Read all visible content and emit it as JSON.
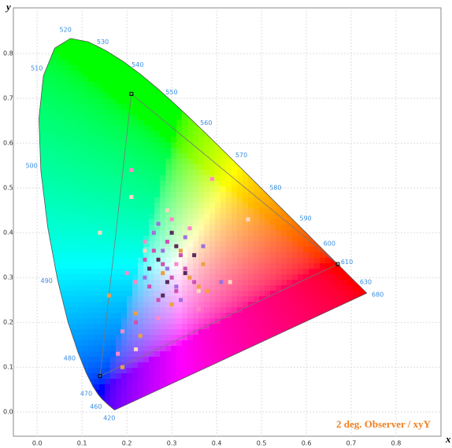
{
  "chart_data": {
    "type": "scatter",
    "x_label": "x",
    "y_label": "y",
    "annotation": "2 deg. Observer / xyY",
    "xlim": [
      -0.053,
      0.9
    ],
    "ylim": [
      -0.054,
      0.902
    ],
    "xticks": [
      {
        "value": 0,
        "label": "0.0"
      },
      0.1,
      0.2,
      0.3,
      0.4,
      0.5,
      0.6,
      0.7,
      0.8
    ],
    "yticks": [
      {
        "value": 0,
        "label": "0.0"
      },
      0.1,
      0.2,
      0.3,
      0.4,
      0.5,
      0.6,
      0.7,
      0.8
    ],
    "grid": true,
    "locus": {
      "x": [
        0.1741,
        0.1714,
        0.1644,
        0.1566,
        0.144,
        0.1355,
        0.1241,
        0.1096,
        0.0913,
        0.0687,
        0.0454,
        0.0235,
        0.0082,
        0.0039,
        0.0139,
        0.0389,
        0.0743,
        0.1142,
        0.1547,
        0.1929,
        0.2296,
        0.2658,
        0.3016,
        0.3373,
        0.3731,
        0.4087,
        0.4441,
        0.4788,
        0.5125,
        0.5448,
        0.5752,
        0.6029,
        0.627,
        0.6482,
        0.6658,
        0.6915,
        0.7079,
        0.726,
        0.7347
      ],
      "y": [
        0.005,
        0.0051,
        0.0109,
        0.0177,
        0.0297,
        0.0399,
        0.0578,
        0.0868,
        0.1327,
        0.2007,
        0.295,
        0.4127,
        0.5384,
        0.6548,
        0.7502,
        0.812,
        0.8338,
        0.8262,
        0.8059,
        0.7816,
        0.7543,
        0.7243,
        0.6923,
        0.6589,
        0.6245,
        0.5896,
        0.5547,
        0.5202,
        0.4866,
        0.4544,
        0.4242,
        0.3965,
        0.3725,
        0.3514,
        0.334,
        0.3083,
        0.292,
        0.274,
        0.2653
      ]
    },
    "wavelength_labels": [
      {
        "label": "420",
        "x": 0.1714,
        "y": 0.0051
      },
      {
        "label": "460",
        "x": 0.144,
        "y": 0.0297
      },
      {
        "label": "470",
        "x": 0.1241,
        "y": 0.0578
      },
      {
        "label": "480",
        "x": 0.0913,
        "y": 0.1327
      },
      {
        "label": "490",
        "x": 0.0454,
        "y": 0.295
      },
      {
        "label": "500",
        "x": 0.0082,
        "y": 0.5384
      },
      {
        "label": "510",
        "x": 0.0139,
        "y": 0.7502
      },
      {
        "label": "520",
        "x": 0.0743,
        "y": 0.8338
      },
      {
        "label": "530",
        "x": 0.1547,
        "y": 0.8059
      },
      {
        "label": "540",
        "x": 0.2296,
        "y": 0.7543
      },
      {
        "label": "550",
        "x": 0.3016,
        "y": 0.6923
      },
      {
        "label": "560",
        "x": 0.3731,
        "y": 0.6245
      },
      {
        "label": "570",
        "x": 0.4441,
        "y": 0.5547
      },
      {
        "label": "580",
        "x": 0.5125,
        "y": 0.4866
      },
      {
        "label": "590",
        "x": 0.5752,
        "y": 0.4242
      },
      {
        "label": "600",
        "x": 0.627,
        "y": 0.3725
      },
      {
        "label": "610",
        "x": 0.6658,
        "y": 0.334
      },
      {
        "label": "630",
        "x": 0.7079,
        "y": 0.292
      },
      {
        "label": "680",
        "x": 0.7347,
        "y": 0.2653
      }
    ],
    "gamut": {
      "x": [
        0.21,
        0.67,
        0.14
      ],
      "y": [
        0.71,
        0.33,
        0.08
      ]
    },
    "series": [
      {
        "color": "#d050b0",
        "x": [
          0.26,
          0.28,
          0.3,
          0.32,
          0.25,
          0.29,
          0.33,
          0.27,
          0.31,
          0.24,
          0.35,
          0.22
        ],
        "y": [
          0.36,
          0.33,
          0.3,
          0.35,
          0.28,
          0.38,
          0.32,
          0.25,
          0.27,
          0.34,
          0.29,
          0.2
        ]
      },
      {
        "color": "#f0a040",
        "x": [
          0.34,
          0.36,
          0.3,
          0.22,
          0.19,
          0.28,
          0.37,
          0.23,
          0.32,
          0.16,
          0.26,
          0.38
        ],
        "y": [
          0.3,
          0.28,
          0.24,
          0.22,
          0.1,
          0.31,
          0.33,
          0.17,
          0.36,
          0.26,
          0.4,
          0.27
        ]
      },
      {
        "color": "#5a2a5a",
        "x": [
          0.27,
          0.31,
          0.29,
          0.33,
          0.25,
          0.3,
          0.28,
          0.35
        ],
        "y": [
          0.34,
          0.37,
          0.29,
          0.31,
          0.32,
          0.4,
          0.26,
          0.35
        ]
      },
      {
        "color": "#ff88c8",
        "x": [
          0.21,
          0.2,
          0.24,
          0.3,
          0.34,
          0.18,
          0.27,
          0.36,
          0.19,
          0.39,
          0.22,
          0.31
        ],
        "y": [
          0.54,
          0.31,
          0.38,
          0.43,
          0.41,
          0.13,
          0.21,
          0.23,
          0.18,
          0.52,
          0.29,
          0.33
        ]
      },
      {
        "color": "#a070e0",
        "x": [
          0.26,
          0.28,
          0.31,
          0.33,
          0.24,
          0.29,
          0.37,
          0.32,
          0.41,
          0.27
        ],
        "y": [
          0.4,
          0.36,
          0.28,
          0.39,
          0.3,
          0.32,
          0.37,
          0.25,
          0.29,
          0.42
        ]
      },
      {
        "color": "#f8d8c0",
        "x": [
          0.21,
          0.36,
          0.43,
          0.14,
          0.47,
          0.24,
          0.29,
          0.22
        ],
        "y": [
          0.48,
          0.27,
          0.29,
          0.4,
          0.43,
          0.36,
          0.45,
          0.14
        ]
      }
    ]
  }
}
